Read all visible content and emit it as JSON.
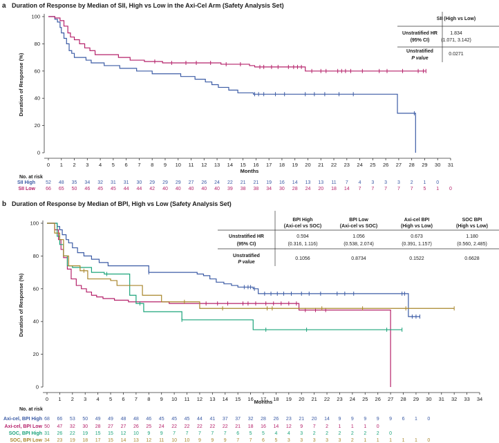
{
  "chart_data": [
    {
      "type": "line",
      "panel_label": "a",
      "title": "Duration of Response by Median of SII, High vs Low in the Axi-Cel Arm (Safety Analysis Set)",
      "xlabel": "Months",
      "ylabel": "Duration of Response (%)",
      "xlim": [
        0,
        31
      ],
      "ylim": [
        0,
        100
      ],
      "xticks": [
        "0",
        "1",
        "2",
        "3",
        "4",
        "5",
        "6",
        "7",
        "8",
        "9",
        "10",
        "11",
        "12",
        "13",
        "14",
        "15",
        "16",
        "17",
        "18",
        "19",
        "20",
        "21",
        "22",
        "23",
        "24",
        "25",
        "26",
        "27",
        "28",
        "29",
        "30",
        "31"
      ],
      "yticks": [
        "0",
        "20",
        "40",
        "60",
        "80",
        "100"
      ],
      "series": [
        {
          "name": "SII High",
          "color": "#3b5ba5",
          "steps": [
            [
              0,
              100
            ],
            [
              0.5,
              98
            ],
            [
              0.7,
              96
            ],
            [
              0.9,
              92
            ],
            [
              1.0,
              88
            ],
            [
              1.2,
              84
            ],
            [
              1.4,
              80
            ],
            [
              1.6,
              75
            ],
            [
              1.8,
              73
            ],
            [
              2.0,
              70
            ],
            [
              2.9,
              68
            ],
            [
              3.3,
              66
            ],
            [
              4.3,
              64
            ],
            [
              5.5,
              62
            ],
            [
              6.8,
              60
            ],
            [
              8.0,
              58
            ],
            [
              10.2,
              56
            ],
            [
              11.3,
              54
            ],
            [
              12.1,
              52
            ],
            [
              12.6,
              50
            ],
            [
              13.1,
              48
            ],
            [
              13.9,
              46
            ],
            [
              14.6,
              44
            ],
            [
              15.8,
              43
            ],
            [
              26.9,
              29
            ],
            [
              28.3,
              0
            ]
          ],
          "censor": [
            15.9,
            16.2,
            16.6,
            17.5,
            18.2,
            19.8,
            20.5,
            21.3,
            22.4,
            23.5,
            28.2
          ],
          "at_risk": [
            "52",
            "48",
            "35",
            "34",
            "32",
            "31",
            "31",
            "30",
            "29",
            "29",
            "29",
            "27",
            "26",
            "24",
            "22",
            "21",
            "21",
            "19",
            "16",
            "14",
            "13",
            "13",
            "11",
            "7",
            "4",
            "3",
            "3",
            "3",
            "2",
            "1",
            "0"
          ]
        },
        {
          "name": "SII Low",
          "color": "#b5216a",
          "steps": [
            [
              0,
              100
            ],
            [
              0.5,
              99
            ],
            [
              0.9,
              97
            ],
            [
              1.2,
              93
            ],
            [
              1.5,
              88
            ],
            [
              1.7,
              85
            ],
            [
              2.0,
              83
            ],
            [
              2.4,
              80
            ],
            [
              2.8,
              77
            ],
            [
              3.2,
              75
            ],
            [
              3.6,
              72
            ],
            [
              5.4,
              70
            ],
            [
              6.3,
              68
            ],
            [
              7.4,
              67
            ],
            [
              8.8,
              66
            ],
            [
              13.3,
              65
            ],
            [
              15.5,
              64
            ],
            [
              15.9,
              63
            ],
            [
              19.8,
              60
            ]
          ],
          "censor": [
            8.2,
            9.5,
            10.6,
            11.4,
            12.5,
            13.7,
            14.8,
            16.3,
            16.6,
            17.2,
            17.7,
            18.5,
            18.9,
            19.2,
            19.5,
            20.3,
            21.0,
            21.4,
            22.3,
            22.6,
            22.9,
            23.3,
            24.2,
            25.5,
            26.1,
            27.3,
            28.5,
            28.9,
            29.1
          ],
          "at_risk": [
            "66",
            "65",
            "50",
            "46",
            "45",
            "45",
            "44",
            "44",
            "42",
            "40",
            "40",
            "40",
            "40",
            "40",
            "39",
            "38",
            "38",
            "34",
            "30",
            "28",
            "24",
            "20",
            "18",
            "14",
            "7",
            "7",
            "7",
            "7",
            "7",
            "5",
            "1",
            "0"
          ]
        }
      ],
      "table": {
        "column_header": "SII (High vs Low)",
        "hr_label": "Unstratified HR",
        "ci_label": "(95% CI)",
        "hr_value": "1.834",
        "ci_value": "(1.071, 3.142)",
        "p_label_1": "Unstratified",
        "p_label_2": "P value",
        "p_value": "0.0271"
      },
      "at_risk_title": "No. at risk"
    },
    {
      "type": "line",
      "panel_label": "b",
      "title": "Duration of Response by Median of BPI, High vs Low (Safety Analysis Set)",
      "xlabel": "Months",
      "ylabel": "Duration of Response (%)",
      "xlim": [
        0,
        34
      ],
      "ylim": [
        0,
        100
      ],
      "xticks": [
        "0",
        "1",
        "2",
        "3",
        "4",
        "5",
        "6",
        "7",
        "8",
        "9",
        "10",
        "11",
        "12",
        "13",
        "14",
        "15",
        "16",
        "17",
        "18",
        "19",
        "20",
        "21",
        "22",
        "23",
        "24",
        "25",
        "26",
        "27",
        "28",
        "29",
        "30",
        "31",
        "32",
        "33",
        "34"
      ],
      "yticks": [
        "0",
        "20",
        "40",
        "60",
        "80",
        "100"
      ],
      "series": [
        {
          "name": "Axi-cel, BPI High",
          "color": "#3b5ba5",
          "steps": [
            [
              0,
              100
            ],
            [
              0.8,
              98
            ],
            [
              1.0,
              96
            ],
            [
              1.2,
              93
            ],
            [
              1.5,
              90
            ],
            [
              1.7,
              88
            ],
            [
              2.0,
              85
            ],
            [
              2.4,
              82
            ],
            [
              2.9,
              80
            ],
            [
              3.5,
              78
            ],
            [
              4.1,
              76
            ],
            [
              4.8,
              74
            ],
            [
              8.0,
              70
            ],
            [
              11.8,
              69
            ],
            [
              12.3,
              68
            ],
            [
              12.8,
              66
            ],
            [
              13.3,
              64
            ],
            [
              13.9,
              63
            ],
            [
              14.5,
              62
            ],
            [
              15.0,
              61
            ],
            [
              16.2,
              60
            ],
            [
              16.6,
              57
            ],
            [
              28.2,
              57
            ],
            [
              28.4,
              43
            ]
          ],
          "censor": [
            8.0,
            15.5,
            15.8,
            16.0,
            16.3,
            17.1,
            17.6,
            18.1,
            18.6,
            19.2,
            20.0,
            20.6,
            21.5,
            22.8,
            23.4,
            24.1,
            27.9,
            28.1,
            28.7,
            29.0,
            29.3
          ],
          "at_risk": [
            "68",
            "66",
            "53",
            "50",
            "49",
            "49",
            "48",
            "48",
            "46",
            "45",
            "45",
            "45",
            "44",
            "41",
            "37",
            "37",
            "32",
            "28",
            "26",
            "23",
            "21",
            "20",
            "14",
            "9",
            "9",
            "9",
            "9",
            "9",
            "6",
            "1",
            "0"
          ]
        },
        {
          "name": "Axi-cel, BPI Low",
          "color": "#b5216a",
          "steps": [
            [
              0,
              100
            ],
            [
              0.6,
              96
            ],
            [
              0.9,
              90
            ],
            [
              1.1,
              84
            ],
            [
              1.3,
              79
            ],
            [
              1.6,
              72
            ],
            [
              1.9,
              66
            ],
            [
              2.3,
              62
            ],
            [
              2.7,
              60
            ],
            [
              3.1,
              58
            ],
            [
              3.5,
              56
            ],
            [
              3.9,
              55
            ],
            [
              4.4,
              54
            ],
            [
              5.3,
              53
            ],
            [
              6.4,
              52
            ],
            [
              9.6,
              51
            ],
            [
              19.8,
              47
            ],
            [
              26.9,
              47
            ],
            [
              27.0,
              0
            ]
          ],
          "censor": [
            12.5,
            13.4,
            14.2,
            15.4,
            15.8,
            16.4,
            17.2,
            17.8,
            18.4,
            19.0,
            19.6,
            20.3,
            21.1,
            21.9
          ],
          "at_risk": [
            "50",
            "47",
            "32",
            "30",
            "28",
            "27",
            "27",
            "26",
            "25",
            "24",
            "22",
            "22",
            "22",
            "22",
            "22",
            "21",
            "18",
            "16",
            "14",
            "12",
            "9",
            "7",
            "2",
            "1",
            "1",
            "1",
            "0"
          ]
        },
        {
          "name": "SOC, BPI High",
          "color": "#1aa37a",
          "steps": [
            [
              0,
              100
            ],
            [
              0.8,
              92
            ],
            [
              1.0,
              87
            ],
            [
              1.3,
              80
            ],
            [
              1.6,
              74
            ],
            [
              2.0,
              73
            ],
            [
              3.5,
              70
            ],
            [
              4.5,
              69
            ],
            [
              6.5,
              56
            ],
            [
              7.0,
              51
            ],
            [
              7.6,
              46
            ],
            [
              10.6,
              41
            ],
            [
              16.2,
              35
            ]
          ],
          "censor": [
            4.7,
            7.3,
            10.6,
            17.2,
            20.4,
            26.7,
            27.9
          ],
          "at_risk": [
            "31",
            "26",
            "22",
            "19",
            "15",
            "15",
            "12",
            "10",
            "9",
            "9",
            "7",
            "7",
            "7",
            "7",
            "7",
            "6",
            "5",
            "5",
            "4",
            "4",
            "3",
            "2",
            "2",
            "2",
            "2",
            "2",
            "2",
            "0"
          ]
        },
        {
          "name": "SOC, BPI Low",
          "color": "#a8852a",
          "steps": [
            [
              0,
              100
            ],
            [
              0.6,
              94
            ],
            [
              1.0,
              90
            ],
            [
              1.3,
              80
            ],
            [
              1.7,
              74
            ],
            [
              2.6,
              71
            ],
            [
              3.2,
              66
            ],
            [
              5.0,
              65
            ],
            [
              5.5,
              62
            ],
            [
              7.5,
              56
            ],
            [
              9.0,
              52
            ],
            [
              12.0,
              48
            ]
          ],
          "censor": [
            2.9,
            10.8,
            13.8,
            17.3,
            17.7,
            21.6,
            24.8,
            28.2,
            32.0
          ],
          "at_risk": [
            "34",
            "23",
            "19",
            "18",
            "17",
            "15",
            "14",
            "13",
            "12",
            "11",
            "10",
            "10",
            "9",
            "9",
            "9",
            "7",
            "7",
            "6",
            "5",
            "3",
            "3",
            "3",
            "3",
            "3",
            "2",
            "1",
            "1",
            "1",
            "1",
            "1",
            "0"
          ]
        }
      ],
      "table": {
        "columns": [
          {
            "line1": "BPI High",
            "line2": "(Axi-cel vs SOC)",
            "hr": "0.594",
            "ci": "(0.316, 1.116)",
            "p": "0.1056"
          },
          {
            "line1": "BPI Low",
            "line2": "(Axi-cel vs SOC)",
            "hr": "1.056",
            "ci": "(0.538, 2.074)",
            "p": "0.8734"
          },
          {
            "line1": "Axi-cel BPI",
            "line2": "(High vs Low)",
            "hr": "0.673",
            "ci": "(0.391, 1.157)",
            "p": "0.1522"
          },
          {
            "line1": "SOC BPI",
            "line2": "(High vs Low)",
            "hr": "1.180",
            "ci": "(0.560, 2.485)",
            "p": "0.6628"
          }
        ],
        "hr_label": "Unstratified HR",
        "ci_label": "(95% CI)",
        "p_label_1": "Unstratified",
        "p_label_2": "P value"
      },
      "at_risk_title": "No. at risk"
    }
  ]
}
